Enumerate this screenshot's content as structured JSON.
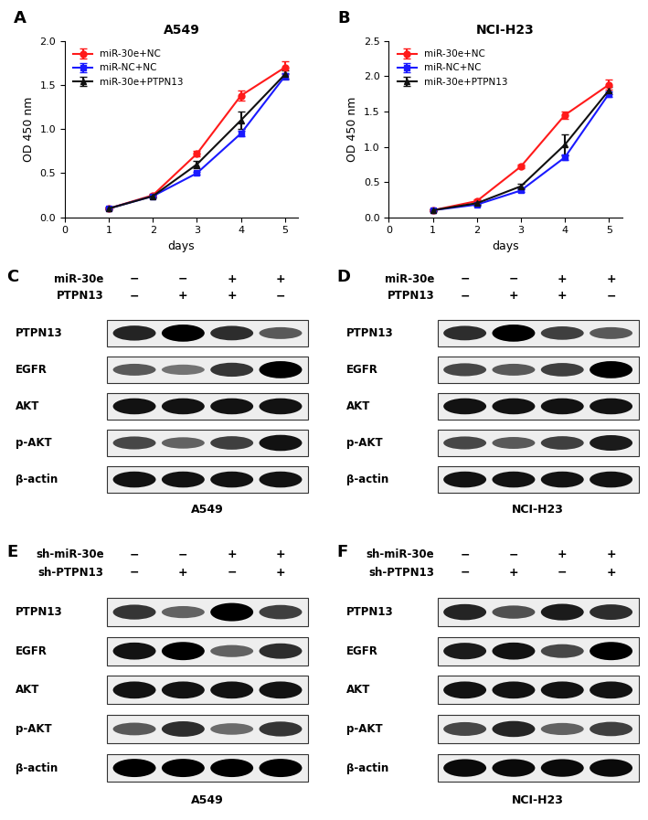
{
  "chart_data": [
    {
      "type": "line",
      "panel": "A",
      "title": "A549",
      "x_label": "days",
      "y_label": "OD 450 nm",
      "x": [
        1,
        2,
        3,
        4,
        5
      ],
      "xlim": [
        0,
        5.3
      ],
      "xticks": [
        0,
        1,
        2,
        3,
        4,
        5
      ],
      "ylim": [
        0,
        2.0
      ],
      "yticks": [
        {
          "value": 0,
          "label": "0.0"
        },
        {
          "value": 0.5,
          "label": "0.5"
        },
        {
          "value": 1.0,
          "label": "1.0"
        },
        {
          "value": 1.5,
          "label": "1.5"
        },
        {
          "value": 2.0,
          "label": "2.0"
        }
      ],
      "legend": "upper left",
      "series": [
        {
          "name": "miR-30e+NC",
          "color": "#ff1a1a",
          "marker": "circle",
          "line_style": "solid",
          "values": [
            0.1,
            0.25,
            0.72,
            1.38,
            1.7
          ],
          "errors": [
            0.01,
            0.02,
            0.03,
            0.06,
            0.07
          ]
        },
        {
          "name": "miR-NC+NC",
          "color": "#1a1aff",
          "marker": "square",
          "line_style": "solid",
          "values": [
            0.1,
            0.24,
            0.5,
            0.95,
            1.6
          ],
          "errors": [
            0.01,
            0.01,
            0.02,
            0.03,
            0.04
          ]
        },
        {
          "name": "miR-30e+PTPN13",
          "color": "#111111",
          "marker": "triangle",
          "line_style": "solid",
          "values": [
            0.1,
            0.24,
            0.6,
            1.1,
            1.62
          ],
          "errors": [
            0.01,
            0.02,
            0.04,
            0.1,
            0.05
          ]
        }
      ]
    },
    {
      "type": "line",
      "panel": "B",
      "title": "NCI-H23",
      "x_label": "days",
      "y_label": "OD 450 nm",
      "x": [
        1,
        2,
        3,
        4,
        5
      ],
      "xlim": [
        0,
        5.3
      ],
      "xticks": [
        0,
        1,
        2,
        3,
        4,
        5
      ],
      "ylim": [
        0,
        2.5
      ],
      "yticks": [
        {
          "value": 0,
          "label": "0.0"
        },
        {
          "value": 0.5,
          "label": "0.5"
        },
        {
          "value": 1.0,
          "label": "1.0"
        },
        {
          "value": 1.5,
          "label": "1.5"
        },
        {
          "value": 2.0,
          "label": "2.0"
        },
        {
          "value": 2.5,
          "label": "2.5"
        }
      ],
      "legend": "upper left",
      "series": [
        {
          "name": "miR-30e+NC",
          "color": "#ff1a1a",
          "marker": "circle",
          "line_style": "solid",
          "values": [
            0.1,
            0.23,
            0.72,
            1.45,
            1.88
          ],
          "errors": [
            0.01,
            0.02,
            0.03,
            0.05,
            0.07
          ]
        },
        {
          "name": "miR-NC+NC",
          "color": "#1a1aff",
          "marker": "square",
          "line_style": "solid",
          "values": [
            0.1,
            0.18,
            0.38,
            0.85,
            1.75
          ],
          "errors": [
            0.01,
            0.01,
            0.02,
            0.04,
            0.04
          ]
        },
        {
          "name": "miR-30e+PTPN13",
          "color": "#111111",
          "marker": "triangle",
          "line_style": "solid",
          "values": [
            0.1,
            0.2,
            0.44,
            1.03,
            1.8
          ],
          "errors": [
            0.01,
            0.02,
            0.03,
            0.15,
            0.05
          ]
        }
      ]
    }
  ],
  "blots": [
    {
      "panel": "C",
      "cell_line": "A549",
      "conditions": [
        {
          "label": "miR-30e",
          "values": [
            "−",
            "−",
            "+",
            "+"
          ]
        },
        {
          "label": "PTPN13",
          "values": [
            "−",
            "+",
            "+",
            "−"
          ]
        }
      ],
      "bands": [
        {
          "protein": "PTPN13",
          "intensity": [
            0.8,
            1.0,
            0.75,
            0.5
          ]
        },
        {
          "protein": "EGFR",
          "intensity": [
            0.5,
            0.35,
            0.7,
            1.0
          ]
        },
        {
          "protein": "AKT",
          "intensity": [
            0.9,
            0.9,
            0.9,
            0.9
          ]
        },
        {
          "protein": "p-AKT",
          "intensity": [
            0.6,
            0.45,
            0.65,
            0.9
          ]
        },
        {
          "protein": "β-actin",
          "intensity": [
            0.9,
            0.9,
            0.9,
            0.9
          ]
        }
      ]
    },
    {
      "panel": "D",
      "cell_line": "NCI-H23",
      "conditions": [
        {
          "label": "miR-30e",
          "values": [
            "−",
            "−",
            "+",
            "+"
          ]
        },
        {
          "label": "PTPN13",
          "values": [
            "−",
            "+",
            "+",
            "−"
          ]
        }
      ],
      "bands": [
        {
          "protein": "PTPN13",
          "intensity": [
            0.75,
            1.0,
            0.65,
            0.5
          ]
        },
        {
          "protein": "EGFR",
          "intensity": [
            0.6,
            0.5,
            0.65,
            1.0
          ]
        },
        {
          "protein": "AKT",
          "intensity": [
            0.9,
            0.9,
            0.9,
            0.9
          ]
        },
        {
          "protein": "p-AKT",
          "intensity": [
            0.6,
            0.5,
            0.65,
            0.85
          ]
        },
        {
          "protein": "β-actin",
          "intensity": [
            0.9,
            0.9,
            0.9,
            0.9
          ]
        }
      ]
    },
    {
      "panel": "E",
      "cell_line": "A549",
      "conditions": [
        {
          "label": "sh-miR-30e",
          "values": [
            "−",
            "−",
            "+",
            "+"
          ]
        },
        {
          "label": "sh-PTPN13",
          "values": [
            "−",
            "+",
            "−",
            "+"
          ]
        }
      ],
      "bands": [
        {
          "protein": "PTPN13",
          "intensity": [
            0.7,
            0.45,
            1.0,
            0.65
          ]
        },
        {
          "protein": "EGFR",
          "intensity": [
            0.9,
            1.0,
            0.45,
            0.75
          ]
        },
        {
          "protein": "AKT",
          "intensity": [
            0.9,
            0.9,
            0.9,
            0.9
          ]
        },
        {
          "protein": "p-AKT",
          "intensity": [
            0.5,
            0.75,
            0.4,
            0.7
          ]
        },
        {
          "protein": "β-actin",
          "intensity": [
            1.0,
            1.0,
            1.0,
            1.0
          ]
        }
      ]
    },
    {
      "panel": "F",
      "cell_line": "NCI-H23",
      "conditions": [
        {
          "label": "sh-miR-30e",
          "values": [
            "−",
            "−",
            "+",
            "+"
          ]
        },
        {
          "label": "sh-PTPN13",
          "values": [
            "−",
            "+",
            "−",
            "+"
          ]
        }
      ],
      "bands": [
        {
          "protein": "PTPN13",
          "intensity": [
            0.8,
            0.55,
            0.85,
            0.75
          ]
        },
        {
          "protein": "EGFR",
          "intensity": [
            0.85,
            0.9,
            0.6,
            1.0
          ]
        },
        {
          "protein": "AKT",
          "intensity": [
            0.9,
            0.9,
            0.9,
            0.9
          ]
        },
        {
          "protein": "p-AKT",
          "intensity": [
            0.6,
            0.8,
            0.45,
            0.65
          ]
        },
        {
          "protein": "β-actin",
          "intensity": [
            0.95,
            0.95,
            0.95,
            0.95
          ]
        }
      ]
    }
  ]
}
